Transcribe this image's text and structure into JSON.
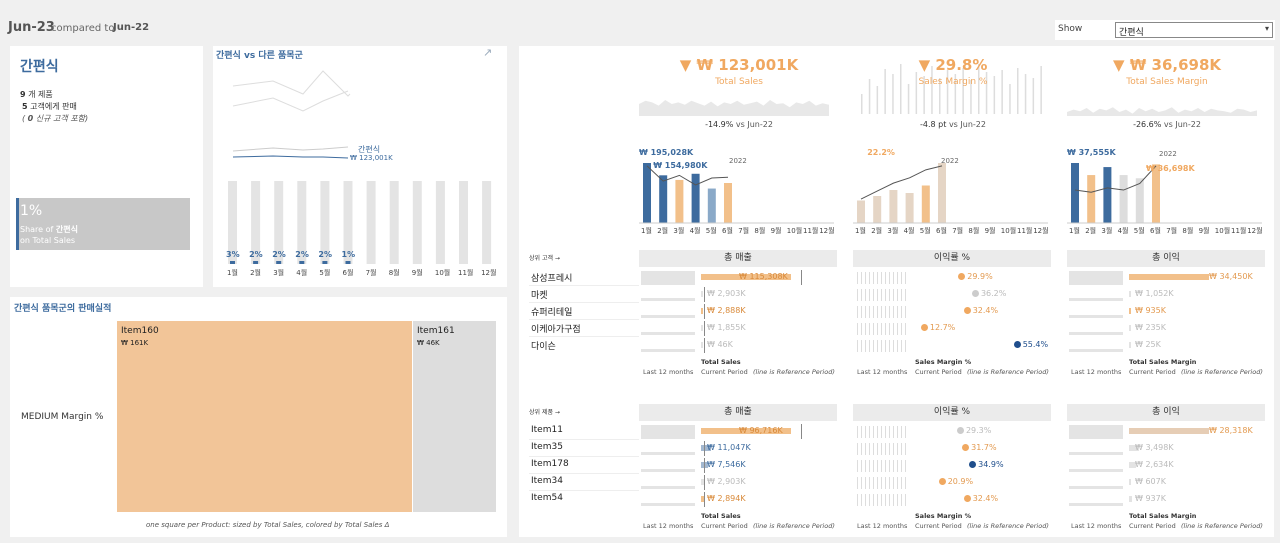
{
  "header": {
    "period": "Jun-23",
    "compared_label": "compared to",
    "compare_period": "Jun-22",
    "show_label": "Show",
    "show_value": "간편식"
  },
  "summary": {
    "title": "간편식",
    "products_num": "9",
    "products_label": "개 제품",
    "customers_num": "5",
    "customers_label": "고객에게 판매",
    "new_customers_open": "(",
    "new_customers_num": "0",
    "new_customers_label": "신규 고객 포함)",
    "share_pct": "1%",
    "share_line1_a": "Share of",
    "share_line1_b": "간편식",
    "share_line2": "on Total Sales"
  },
  "trend": {
    "title": "간편식 vs 다른 품목군",
    "series_label": "간편식",
    "series_value": "₩ 123,001K",
    "bars": [
      {
        "month": "1월",
        "pct": "3%"
      },
      {
        "month": "2월",
        "pct": "2%"
      },
      {
        "month": "3월",
        "pct": "2%"
      },
      {
        "month": "4월",
        "pct": "2%"
      },
      {
        "month": "5월",
        "pct": "2%"
      },
      {
        "month": "6월",
        "pct": "1%"
      },
      {
        "month": "7월",
        "pct": ""
      },
      {
        "month": "8월",
        "pct": ""
      },
      {
        "month": "9월",
        "pct": ""
      },
      {
        "month": "10월",
        "pct": ""
      },
      {
        "month": "11월",
        "pct": ""
      },
      {
        "month": "12월",
        "pct": ""
      }
    ]
  },
  "treemap": {
    "title": "간편식 품목군의 판매실적",
    "row_label": "MEDIUM Margin %",
    "items": [
      {
        "name": "Item160",
        "value": "₩ 161K",
        "color": "#f2c598",
        "share": 0.78
      },
      {
        "name": "Item161",
        "value": "₩ 46K",
        "color": "#dddddd",
        "share": 0.22
      }
    ],
    "footer": "one square per Product: sized by Total Sales, colored by Total Sales Δ"
  },
  "kpis": [
    {
      "value": "₩ 123,001K",
      "label": "Total Sales",
      "delta": "-14.9%",
      "delta_suffix": "vs Jun-22",
      "bars": [
        195.028,
        154.98,
        140,
        160,
        112,
        130,
        0,
        0,
        0,
        0,
        0,
        0
      ],
      "bar_colors": [
        "#3d6b9e",
        "#3d6b9e",
        "#f2c08a",
        "#3d6b9e",
        "#8aa9c8",
        "#f2c08a",
        "",
        "",
        "",
        "",
        "",
        ""
      ],
      "labels": [
        {
          "i": 0,
          "text": "₩ 195,028K",
          "color": "#3d6b9e"
        },
        {
          "i": 1,
          "text": "₩ 154,980K",
          "color": "#3d6b9e"
        }
      ],
      "line": [
        150,
        110,
        125,
        100,
        118,
        120
      ],
      "line_label": "2022",
      "spark": [
        40,
        44,
        42,
        38,
        45,
        40,
        42,
        39,
        44,
        41,
        38,
        43,
        37,
        42,
        40,
        44,
        39,
        41,
        43,
        38,
        45,
        40,
        41,
        36,
        42,
        40,
        44,
        38,
        41,
        39
      ]
    },
    {
      "value": "29.8%",
      "label": "Sales Margin %",
      "delta": "-4.8 pt",
      "delta_suffix": "vs Jun-22",
      "bars": [
        15,
        18,
        22,
        20,
        25,
        40,
        0,
        0,
        0,
        0,
        0,
        0
      ],
      "bar_colors": [
        "#e5d5c5",
        "#e5d5c5",
        "#e5d5c5",
        "#e5d5c5",
        "#f2c08a",
        "#e5d5c5",
        "",
        "",
        "",
        "",
        "",
        ""
      ],
      "labels": [
        {
          "i": 1,
          "text": "22.2%",
          "color": "#f0a860"
        }
      ],
      "line": [
        18,
        24,
        30,
        34,
        40,
        43
      ],
      "line_label": "2022",
      "spark": []
    },
    {
      "value": "₩ 36,698K",
      "label": "Total Sales Margin",
      "delta": "-26.6%",
      "delta_suffix": "vs Jun-22",
      "bars": [
        37.555,
        30,
        35,
        30,
        28,
        36.698,
        0,
        0,
        0,
        0,
        0,
        0
      ],
      "bar_colors": [
        "#3d6b9e",
        "#f2c08a",
        "#3d6b9e",
        "#ddd",
        "#ddd",
        "#f2c08a",
        "",
        "",
        "",
        "",
        "",
        ""
      ],
      "labels": [
        {
          "i": 0,
          "text": "₩ 37,555K",
          "color": "#3d6b9e"
        },
        {
          "i": 5,
          "text": "₩ 36,698K",
          "color": "#f0a860"
        }
      ],
      "line": [
        30,
        28,
        32,
        30,
        36,
        52
      ],
      "line_label": "2022",
      "spark": [
        30,
        33,
        31,
        35,
        29,
        34,
        32,
        36,
        30,
        33,
        28,
        35,
        31,
        34,
        30,
        32,
        36,
        29,
        33,
        31,
        35,
        30,
        34,
        32,
        31,
        29,
        34,
        33,
        30,
        32
      ]
    }
  ],
  "months": [
    "1월",
    "2월",
    "3월",
    "4월",
    "5월",
    "6월",
    "7월",
    "8월",
    "9월",
    "10월",
    "11월",
    "12월"
  ],
  "customers": {
    "section_label": "상위 고객 →",
    "col_sales": "총 매출",
    "col_margin_pct": "이익률 %",
    "col_margin": "총 이익",
    "rows": [
      {
        "name": "삼성프레시",
        "sales": "₩ 115,308K",
        "sales_v": 115308,
        "sales_hl": true,
        "margin_pct": "29.9%",
        "margin_pct_v": 29.9,
        "mp_color": "#f0a860",
        "margin": "₩ 34,450K",
        "margin_v": 34450,
        "m_hl": true
      },
      {
        "name": "마켓",
        "sales": "₩ 2,903K",
        "sales_v": 2903,
        "sales_hl": false,
        "margin_pct": "36.2%",
        "margin_pct_v": 36.2,
        "mp_color": "#ccc",
        "margin": "₩ 1,052K",
        "margin_v": 1052,
        "m_hl": false
      },
      {
        "name": "슈퍼리테일",
        "sales": "₩ 2,888K",
        "sales_v": 2888,
        "sales_hl": true,
        "margin_pct": "32.4%",
        "margin_pct_v": 32.4,
        "mp_color": "#f0a860",
        "margin": "₩ 935K",
        "margin_v": 935,
        "m_hl": true
      },
      {
        "name": "이케아가구점",
        "sales": "₩ 1,855K",
        "sales_v": 1855,
        "sales_hl": false,
        "margin_pct": "12.7%",
        "margin_pct_v": 12.7,
        "mp_color": "#f0a860",
        "margin": "₩ 235K",
        "margin_v": 235,
        "m_hl": false
      },
      {
        "name": "다이슨",
        "sales": "₩ 46K",
        "sales_v": 46,
        "sales_hl": false,
        "margin_pct": "55.4%",
        "margin_pct_v": 55.4,
        "mp_color": "#1f4e8c",
        "margin": "₩ 25K",
        "margin_v": 25,
        "m_hl": false
      }
    ],
    "foot_last": "Last 12 months",
    "foot_sales": "Total Sales",
    "foot_margin_pct": "Sales Margin %",
    "foot_margin": "Total Sales Margin",
    "foot_current": "Current Period",
    "foot_ref": "(line is Reference Period)"
  },
  "products": {
    "section_label": "상위 제품 →",
    "col_sales": "총 매출",
    "col_margin_pct": "이익률 %",
    "col_margin": "총 이익",
    "rows": [
      {
        "name": "Item11",
        "sales": "₩ 96,716K",
        "sales_v": 96716,
        "sales_hl": true,
        "margin_pct": "29.3%",
        "margin_pct_v": 29.3,
        "mp_color": "#ccc",
        "margin": "₩ 28,318K",
        "margin_v": 28318,
        "m_hl": true
      },
      {
        "name": "Item35",
        "sales": "₩ 11,047K",
        "sales_v": 11047,
        "sales_hl": "blue",
        "margin_pct": "31.7%",
        "margin_pct_v": 31.7,
        "mp_color": "#f0a860",
        "margin": "₩ 3,498K",
        "margin_v": 3498,
        "m_hl": false
      },
      {
        "name": "Item178",
        "sales": "₩ 7,546K",
        "sales_v": 7546,
        "sales_hl": "blue",
        "margin_pct": "34.9%",
        "margin_pct_v": 34.9,
        "mp_color": "#1f4e8c",
        "margin": "₩ 2,634K",
        "margin_v": 2634,
        "m_hl": false
      },
      {
        "name": "Item34",
        "sales": "₩ 2,903K",
        "sales_v": 2903,
        "sales_hl": false,
        "margin_pct": "20.9%",
        "margin_pct_v": 20.9,
        "mp_color": "#f0a860",
        "margin": "₩ 607K",
        "margin_v": 607,
        "m_hl": false
      },
      {
        "name": "Item54",
        "sales": "₩ 2,894K",
        "sales_v": 2894,
        "sales_hl": true,
        "margin_pct": "32.4%",
        "margin_pct_v": 32.4,
        "mp_color": "#f0a860",
        "margin": "₩ 937K",
        "margin_v": 937,
        "m_hl": false
      }
    ],
    "foot_last": "Last 12 months",
    "foot_sales": "Total Sales",
    "foot_margin_pct": "Sales Margin %",
    "foot_margin": "Total Sales Margin",
    "foot_current": "Current Period",
    "foot_ref": "(line is Reference Period)"
  }
}
